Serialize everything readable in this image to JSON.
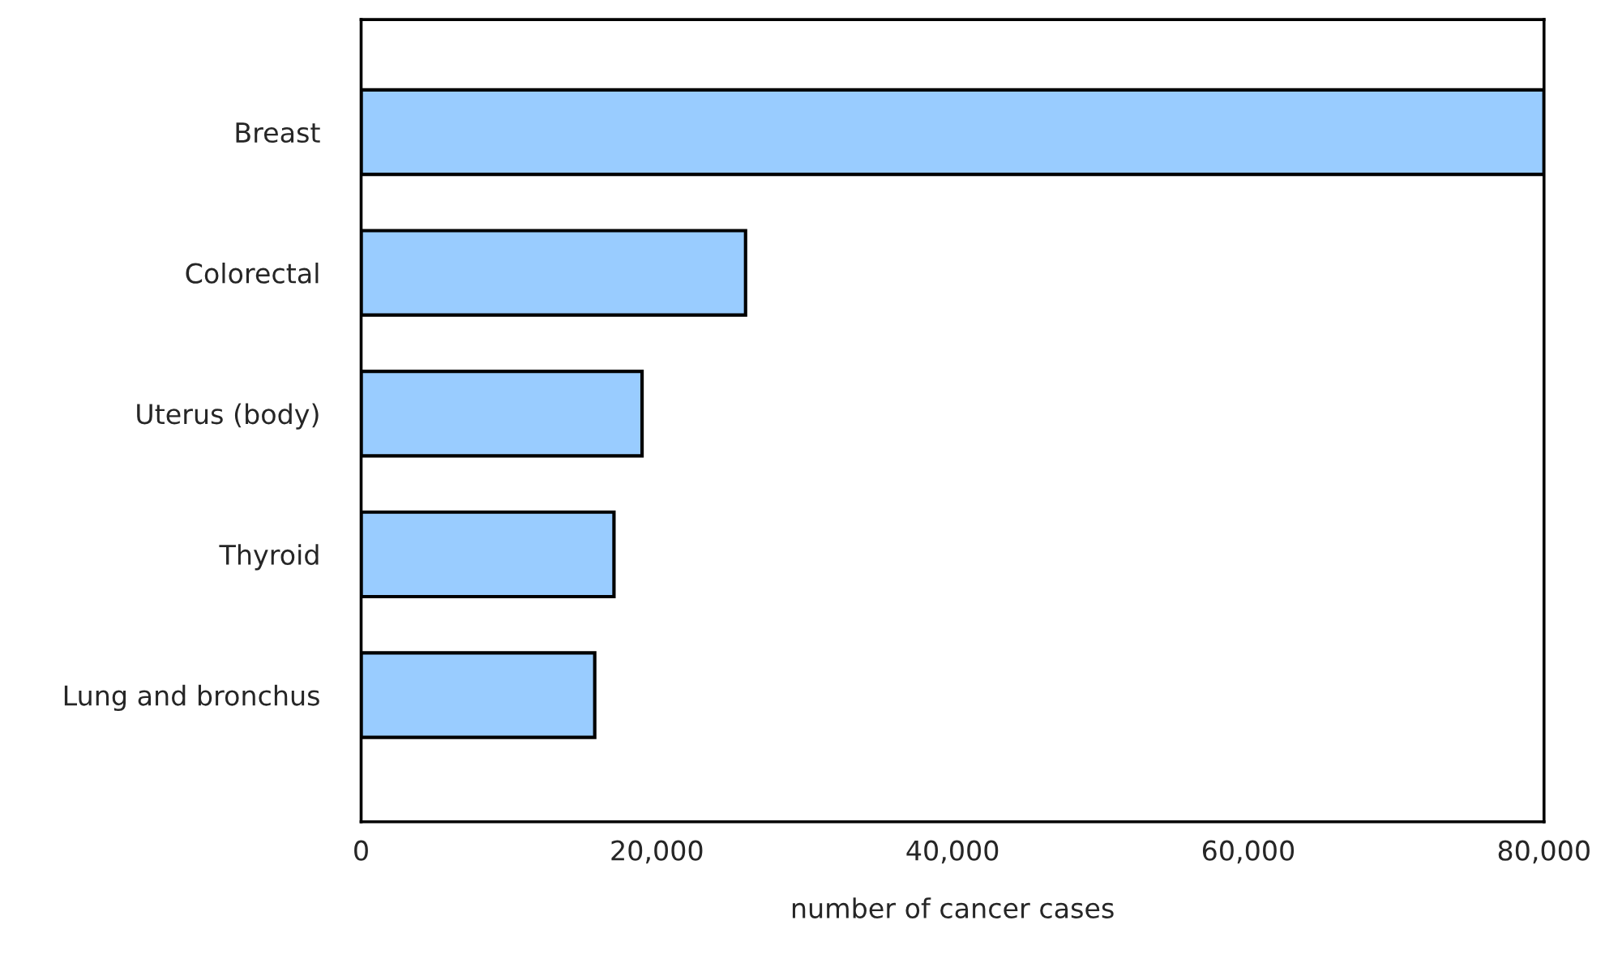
{
  "chart_data": {
    "type": "bar",
    "orientation": "horizontal",
    "categories": [
      "Breast",
      "Colorectal",
      "Uterus (body)",
      "Thyroid",
      "Lung and bronchus"
    ],
    "values": [
      80000,
      26000,
      19000,
      17100,
      15800
    ],
    "color": "#99ccff",
    "xlabel": "number of cancer cases",
    "xlim": [
      0,
      80000
    ],
    "xticks": [
      0,
      {
        "value": 20000,
        "label": "20,000"
      },
      {
        "value": 40000,
        "label": "40,000"
      },
      {
        "value": 60000,
        "label": "60,000"
      },
      {
        "value": 80000,
        "label": "80,000"
      }
    ],
    "grid": false,
    "legend": false
  }
}
